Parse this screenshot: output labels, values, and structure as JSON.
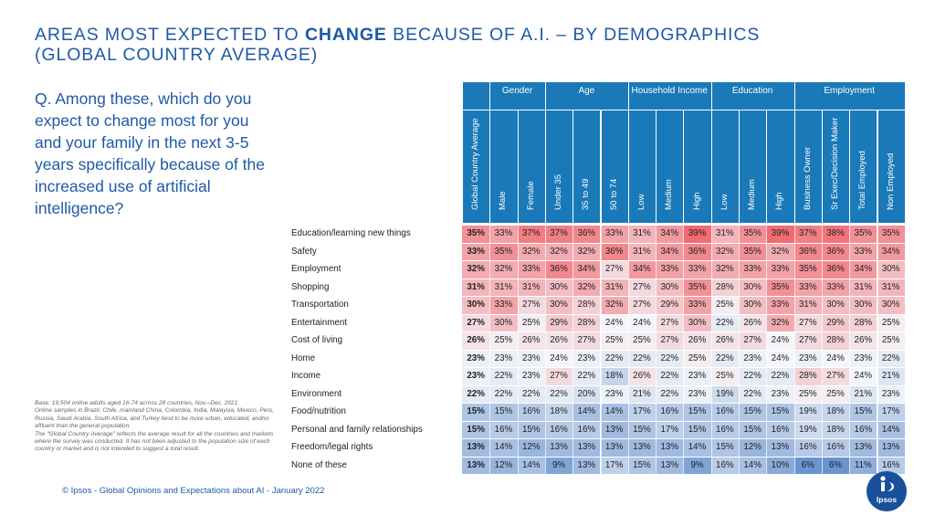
{
  "title": {
    "prefix": "AREAS MOST EXPECTED TO ",
    "emphasis": "CHANGE",
    "suffix": " BECAUSE OF A.I. – BY DEMOGRAPHICS",
    "line2": "(GLOBAL COUNTRY AVERAGE)"
  },
  "question": "Q. Among these, which do you expect to change most for you and your family in the next 3-5 years specifically because of the increased use of artificial intelligence?",
  "base_note": "Base: 19,504 online adults aged 16-74 across 28 countries, Nov.–Dec. 2021\nOnline samples in Brazil, Chile, mainland China, Colombia, India, Malaysia, Mexico, Peru, Russia, Saudi Arabia, South Africa, and Turkey tend to be more urban, educated, and/or affluent than the general population.\nThe \"Global Country Average\" reflects the average result for all the countries and markets where the survey was conducted. It has not been adjusted to the population size of each country or market and is not intended to suggest a total result.",
  "footer": "© Ipsos - Global Opinions and Expectations about AI - January 2022",
  "logo_text": "Ipsos",
  "colors": {
    "title": "#1f5aa6",
    "header": "#1a79b8",
    "high": "#f16b71",
    "mid": "#f4f6fa",
    "low": "#6a94d0"
  },
  "chart_data": {
    "type": "table",
    "groups": [
      {
        "label": "",
        "span": 1
      },
      {
        "label": "Gender",
        "span": 2
      },
      {
        "label": "Age",
        "span": 3
      },
      {
        "label": "Household Income",
        "span": 3
      },
      {
        "label": "Education",
        "span": 3
      },
      {
        "label": "Employment",
        "span": 4
      }
    ],
    "columns": [
      "Global Country Average",
      "Male",
      "Female",
      "Under 35",
      "35 to 49",
      "50 to 74",
      "Low",
      "Medium",
      "High",
      "Low",
      "Medium",
      "High",
      "Business Owner",
      "Sr Exec/Decision Maker",
      "Total Employed",
      "Non Employed"
    ],
    "rows": [
      {
        "label": "Education/learning new things",
        "values": [
          35,
          33,
          37,
          37,
          36,
          33,
          31,
          34,
          39,
          31,
          35,
          39,
          37,
          38,
          35,
          35
        ]
      },
      {
        "label": "Safety",
        "values": [
          33,
          35,
          32,
          32,
          32,
          36,
          31,
          34,
          36,
          32,
          35,
          32,
          36,
          36,
          33,
          34
        ]
      },
      {
        "label": "Employment",
        "values": [
          32,
          32,
          33,
          36,
          34,
          27,
          34,
          33,
          33,
          32,
          33,
          33,
          35,
          36,
          34,
          30
        ]
      },
      {
        "label": "Shopping",
        "values": [
          31,
          31,
          31,
          30,
          32,
          31,
          27,
          30,
          35,
          28,
          30,
          35,
          33,
          33,
          31,
          31
        ]
      },
      {
        "label": "Transportation",
        "values": [
          30,
          33,
          27,
          30,
          28,
          32,
          27,
          29,
          33,
          25,
          30,
          33,
          31,
          30,
          30,
          30
        ]
      },
      {
        "label": "Entertainment",
        "values": [
          27,
          30,
          25,
          29,
          28,
          24,
          24,
          27,
          30,
          22,
          26,
          32,
          27,
          29,
          28,
          25
        ]
      },
      {
        "label": "Cost of living",
        "values": [
          26,
          25,
          26,
          26,
          27,
          25,
          25,
          27,
          26,
          26,
          27,
          24,
          27,
          28,
          26,
          25
        ]
      },
      {
        "label": "Home",
        "values": [
          23,
          23,
          23,
          24,
          23,
          22,
          22,
          22,
          25,
          22,
          23,
          24,
          23,
          24,
          23,
          22
        ]
      },
      {
        "label": "Income",
        "values": [
          23,
          22,
          23,
          27,
          22,
          18,
          26,
          22,
          23,
          25,
          22,
          22,
          28,
          27,
          24,
          21
        ]
      },
      {
        "label": "Environment",
        "values": [
          22,
          22,
          22,
          22,
          20,
          23,
          21,
          22,
          23,
          19,
          22,
          23,
          25,
          25,
          21,
          23
        ]
      },
      {
        "label": "Food/nutrition",
        "values": [
          15,
          15,
          16,
          18,
          14,
          14,
          17,
          16,
          15,
          16,
          15,
          15,
          19,
          18,
          15,
          17
        ]
      },
      {
        "label": "Personal and family relationships",
        "values": [
          15,
          16,
          15,
          16,
          16,
          13,
          15,
          17,
          15,
          16,
          15,
          16,
          19,
          18,
          16,
          14
        ]
      },
      {
        "label": "Freedom/legal rights",
        "values": [
          13,
          14,
          12,
          13,
          13,
          13,
          13,
          13,
          14,
          15,
          12,
          13,
          16,
          16,
          13,
          13
        ]
      },
      {
        "label": "None of these",
        "values": [
          13,
          12,
          14,
          9,
          13,
          17,
          15,
          13,
          9,
          16,
          14,
          10,
          6,
          6,
          11,
          16
        ]
      }
    ],
    "unit": "%"
  }
}
